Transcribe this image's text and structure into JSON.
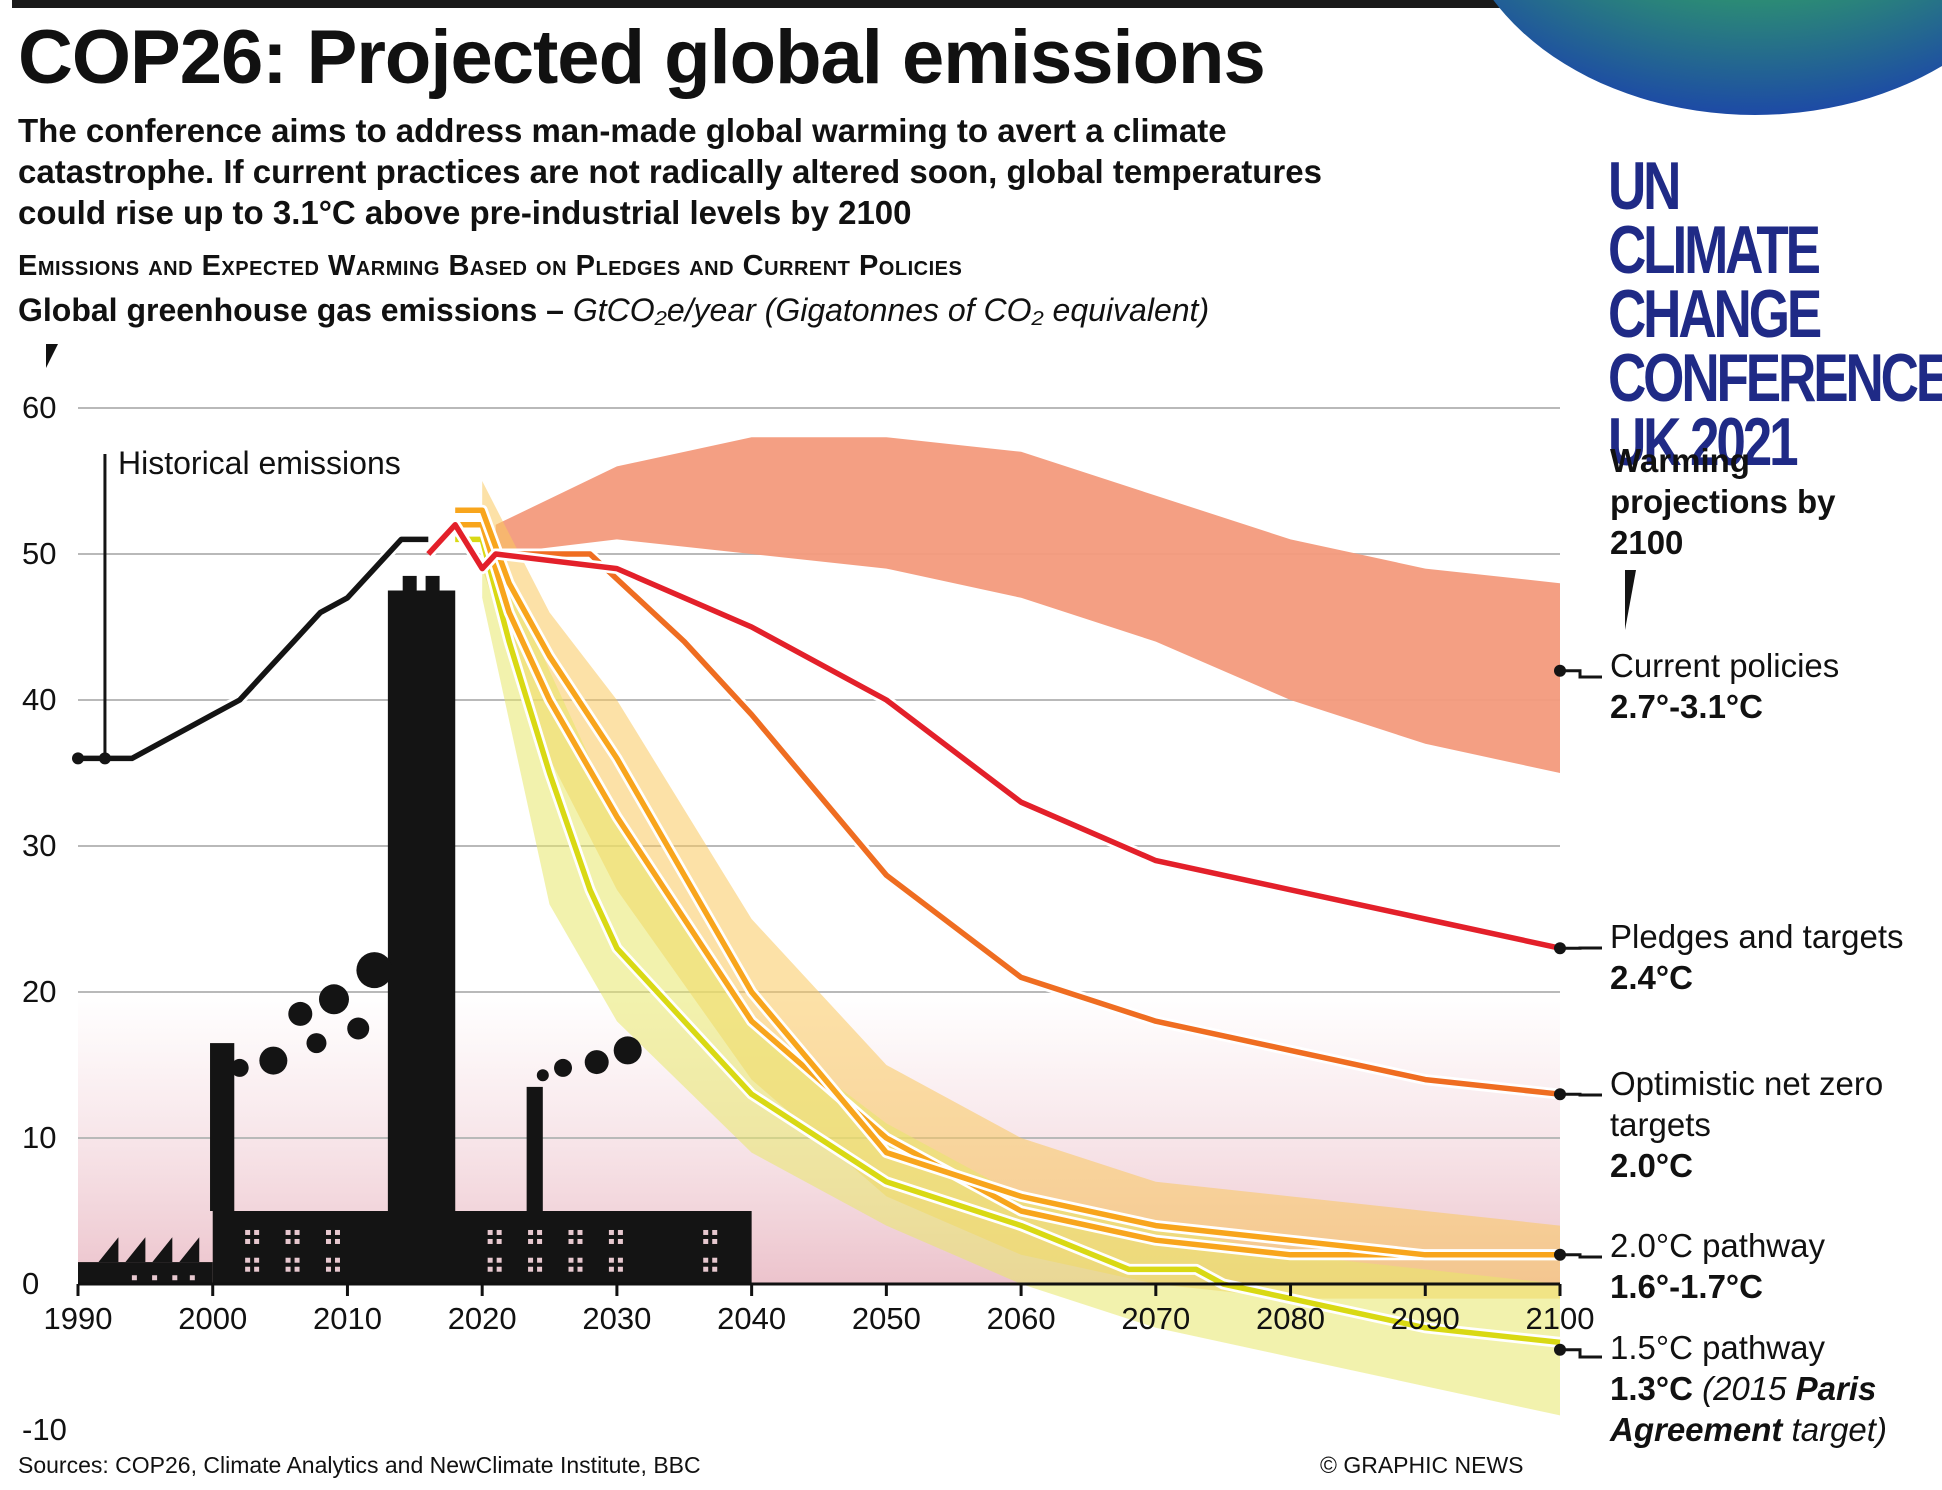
{
  "header": {
    "title": "COP26: Projected global emissions",
    "subtitle": "The conference aims to address man-made global warming to avert a climate catastrophe. If current practices are not radically altered soon, global temperatures could rise up to 3.1°C above pre-industrial levels by 2100",
    "section_title": "Emissions and Expected Warming Based on Pledges and Current Policies",
    "units_bold": "Global greenhouse gas emissions –",
    "units_italic": "GtCO₂e/year (Gigatonnes of CO₂ equivalent)"
  },
  "logo": {
    "line1": "UN CLIMATE",
    "line2": "CHANGE",
    "line3": "CONFERENCE",
    "line4": "UK 2021"
  },
  "legend": {
    "heading": "Warming projections by 2100",
    "items": [
      {
        "name": "Current policies",
        "value": "2.7°-3.1°C",
        "color": "#e3202a"
      },
      {
        "name": "Pledges and targets",
        "value": "2.4°C",
        "color": "#ef6d21"
      },
      {
        "name": "Optimistic net zero targets",
        "value": "2.0°C",
        "color": "#f8a51c"
      },
      {
        "name": "2.0°C pathway",
        "value": "1.6°-1.7°C",
        "color": "#f8a51c"
      },
      {
        "name": "1.5°C pathway",
        "value": "1.3°C",
        "note_pre": "(2015 ",
        "note_bold": "Paris Agreement",
        "note_post": " target)",
        "color": "#d9d914"
      }
    ]
  },
  "footer": {
    "sources": "Sources: COP26, Climate Analytics and NewClimate Institute, BBC",
    "credit": "© GRAPHIC NEWS"
  },
  "chart_data": {
    "type": "line",
    "xlim": [
      1990,
      2100
    ],
    "ylim": [
      -10,
      60
    ],
    "x_ticks": [
      1990,
      2000,
      2010,
      2020,
      2030,
      2040,
      2050,
      2060,
      2070,
      2080,
      2090,
      2100
    ],
    "y_ticks": [
      60,
      50,
      40,
      30,
      20,
      10,
      0,
      -10
    ],
    "grid": true,
    "historical_label": "Historical emissions",
    "historical": {
      "name": "Historical emissions",
      "x": [
        1990,
        1992,
        1994,
        1996,
        1998,
        2000,
        2002,
        2004,
        2006,
        2008,
        2010,
        2012,
        2014,
        2016
      ],
      "y": [
        36,
        36,
        36,
        37,
        38,
        39,
        40,
        42,
        44,
        46,
        47,
        49,
        51,
        51
      ]
    },
    "series": [
      {
        "name": "Current policies",
        "x": [
          2016,
          2018,
          2020,
          2021,
          2030,
          2040,
          2050,
          2060,
          2070,
          2080,
          2090,
          2100
        ],
        "y": [
          50,
          52,
          49,
          50,
          49,
          45,
          40,
          33,
          29,
          27,
          25,
          23
        ]
      },
      {
        "name": "Pledges and targets",
        "x": [
          2016,
          2018,
          2020,
          2021,
          2028,
          2035,
          2040,
          2050,
          2060,
          2070,
          2080,
          2090,
          2100
        ],
        "y": [
          50,
          52,
          49,
          50,
          50,
          44,
          39,
          28,
          21,
          18,
          16,
          14,
          13
        ]
      },
      {
        "name": "Optimistic net zero targets",
        "x": [
          2018,
          2020,
          2022,
          2025,
          2030,
          2040,
          2050,
          2060,
          2070,
          2080,
          2090,
          2100
        ],
        "y": [
          53,
          53,
          48,
          43,
          36,
          20,
          9,
          6,
          4,
          3,
          2,
          2
        ]
      },
      {
        "name": "2.0°C pathway",
        "x": [
          2018,
          2020,
          2022,
          2025,
          2030,
          2040,
          2050,
          2060,
          2070,
          2080,
          2090,
          2100
        ],
        "y": [
          52,
          52,
          46,
          40,
          32,
          18,
          10,
          5,
          3,
          2,
          2,
          2
        ]
      },
      {
        "name": "1.5°C pathway",
        "x": [
          2018,
          2020,
          2022,
          2025,
          2028,
          2030,
          2040,
          2050,
          2060,
          2068,
          2073,
          2075,
          2080,
          2090,
          2100
        ],
        "y": [
          51,
          51,
          44,
          35,
          27,
          23,
          13,
          7,
          4,
          1,
          1,
          0,
          -1,
          -3,
          -4
        ]
      }
    ],
    "ranges": [
      {
        "name": "Current policies",
        "x": [
          2021,
          2030,
          2040,
          2050,
          2060,
          2070,
          2080,
          2090,
          2100
        ],
        "low": [
          50,
          51,
          50,
          49,
          47,
          44,
          40,
          37,
          35
        ],
        "high": [
          52,
          56,
          58,
          58,
          57,
          54,
          51,
          49,
          48
        ]
      },
      {
        "name": "2.0°C pathway",
        "x": [
          2020,
          2025,
          2030,
          2040,
          2050,
          2060,
          2070,
          2080,
          2090,
          2100
        ],
        "low": [
          49,
          36,
          27,
          14,
          6,
          2,
          0,
          -1,
          -1,
          -1
        ],
        "high": [
          55,
          46,
          40,
          25,
          15,
          10,
          7,
          6,
          5,
          4
        ]
      },
      {
        "name": "1.5°C pathway",
        "x": [
          2020,
          2025,
          2030,
          2040,
          2050,
          2060,
          2070,
          2080,
          2090,
          2100
        ],
        "low": [
          47,
          26,
          18,
          9,
          4,
          0,
          -3,
          -5,
          -7,
          -9
        ],
        "high": [
          53,
          42,
          32,
          18,
          11,
          6,
          4,
          2,
          1,
          0
        ]
      }
    ]
  }
}
